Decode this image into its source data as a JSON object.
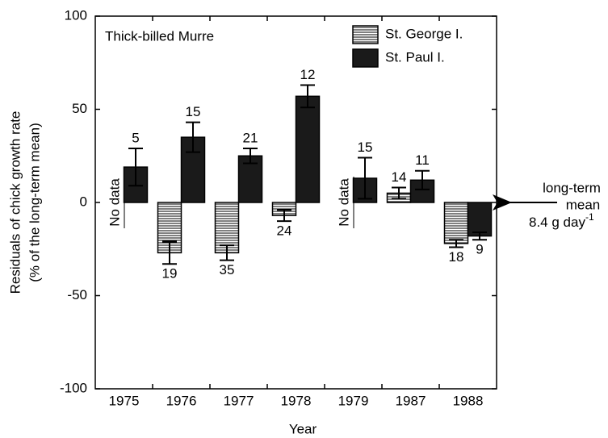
{
  "chart_data": {
    "type": "bar",
    "title": "Thick-billed Murre",
    "x_label": "Year",
    "y_label": [
      "Residuals of chick growth rate",
      "(% of the long-term mean)"
    ],
    "categories": [
      "1975",
      "1976",
      "1977",
      "1978",
      "1979",
      "1987",
      "1988"
    ],
    "series": [
      {
        "name": "St. George I.",
        "color": "#000000",
        "hatch": "horizontal",
        "values": [
          null,
          -27,
          -27,
          -7,
          null,
          5,
          -22
        ],
        "errors": [
          null,
          6,
          4,
          3,
          null,
          3,
          2
        ],
        "n": [
          null,
          19,
          35,
          24,
          null,
          14,
          18
        ]
      },
      {
        "name": "St. Paul I.",
        "color": "#1a1a1a",
        "values": [
          19,
          35,
          25,
          57,
          13,
          12,
          -18
        ],
        "errors": [
          10,
          8,
          4,
          6,
          11,
          5,
          2
        ],
        "n": [
          5,
          15,
          21,
          12,
          15,
          11,
          9
        ]
      }
    ],
    "ylim": [
      -100,
      100
    ],
    "yticks": [
      -100,
      -50,
      0,
      50,
      100
    ],
    "legend": "upper right",
    "no_data_label": "No data",
    "annotation": {
      "lines": [
        "long-term",
        "mean",
        "8.4 g day"
      ],
      "superscript": "-1"
    }
  }
}
